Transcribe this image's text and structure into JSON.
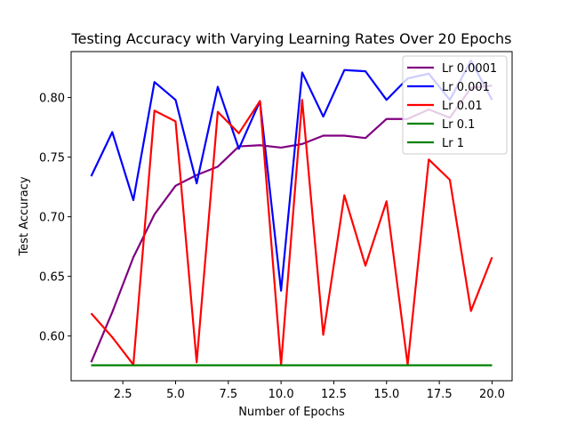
{
  "chart_data": {
    "type": "line",
    "title": "Testing Accuracy with Varying Learning Rates Over 20 Epochs",
    "xlabel": "Number of Epochs",
    "ylabel": "Test Accuracy",
    "xlim": [
      0.05,
      20.95
    ],
    "ylim": [
      0.5625,
      0.8385
    ],
    "xticks": [
      2.5,
      5.0,
      7.5,
      10.0,
      12.5,
      15.0,
      17.5,
      20.0
    ],
    "xtick_labels": [
      "2.5",
      "5.0",
      "7.5",
      "10.0",
      "12.5",
      "15.0",
      "17.5",
      "20.0"
    ],
    "yticks": [
      0.6,
      0.65,
      0.7,
      0.75,
      0.8
    ],
    "ytick_labels": [
      "0.60",
      "0.65",
      "0.70",
      "0.75",
      "0.80"
    ],
    "grid": false,
    "legend_position": "top-right",
    "x": [
      1,
      2,
      3,
      4,
      5,
      6,
      7,
      8,
      9,
      10,
      11,
      12,
      13,
      14,
      15,
      16,
      17,
      18,
      19,
      20
    ],
    "series": [
      {
        "name": "Lr 0.0001",
        "color": "#800080",
        "values": [
          0.578,
          0.62,
          0.666,
          0.702,
          0.726,
          0.735,
          0.742,
          0.759,
          0.76,
          0.758,
          0.761,
          0.768,
          0.768,
          0.766,
          0.782,
          0.782,
          0.79,
          0.783,
          0.808,
          0.81
        ]
      },
      {
        "name": "Lr 0.001",
        "color": "#0000ff",
        "values": [
          0.734,
          0.771,
          0.714,
          0.813,
          0.798,
          0.728,
          0.809,
          0.757,
          0.797,
          0.638,
          0.821,
          0.784,
          0.823,
          0.822,
          0.798,
          0.816,
          0.82,
          0.798,
          0.831,
          0.798
        ]
      },
      {
        "name": "Lr 0.01",
        "color": "#ff0000",
        "values": [
          0.619,
          0.599,
          0.576,
          0.789,
          0.78,
          0.578,
          0.788,
          0.77,
          0.797,
          0.576,
          0.798,
          0.601,
          0.718,
          0.659,
          0.713,
          0.576,
          0.748,
          0.731,
          0.621,
          0.666
        ]
      },
      {
        "name": "Lr 0.1",
        "color": "#008000",
        "values": [
          0.5755,
          0.5755,
          0.5755,
          0.5755,
          0.5755,
          0.5755,
          0.5755,
          0.5755,
          0.5755,
          0.5755,
          0.5755,
          0.5755,
          0.5755,
          0.5755,
          0.5755,
          0.5755,
          0.5755,
          0.5755,
          0.5755,
          0.5755
        ]
      },
      {
        "name": "Lr 1",
        "color": "#008000",
        "values": [
          0.5755,
          0.5755,
          0.5755,
          0.5755,
          0.5755,
          0.5755,
          0.5755,
          0.5755,
          0.5755,
          0.5755,
          0.5755,
          0.5755,
          0.5755,
          0.5755,
          0.5755,
          0.5755,
          0.5755,
          0.5755,
          0.5755,
          0.5755
        ]
      }
    ]
  }
}
